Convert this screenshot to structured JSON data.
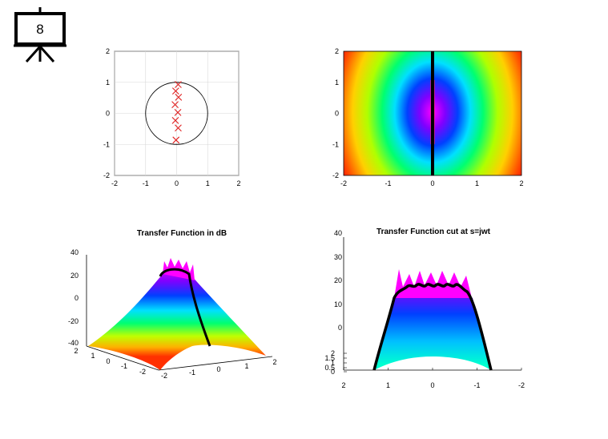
{
  "slide": {
    "number": "8",
    "icon": "presentation-board-icon"
  },
  "chart_data": [
    {
      "type": "scatter",
      "title": "",
      "description_unit": "pole-zero plot",
      "xlim": [
        -2,
        2
      ],
      "ylim": [
        -2,
        2
      ],
      "xticks": [
        "-2",
        "-1",
        "0",
        "1",
        "2"
      ],
      "yticks": [
        "-2",
        "-1",
        "0",
        "1",
        "2"
      ],
      "grid": true,
      "unit_circle": true,
      "poles": {
        "marker": "x",
        "color": "#e02020",
        "x": [
          0.05,
          -0.03,
          0.06,
          -0.05,
          0.04,
          -0.04,
          0.05,
          -0.02
        ],
        "y": [
          0.93,
          0.72,
          0.52,
          0.28,
          0.03,
          -0.23,
          -0.47,
          -0.86
        ]
      }
    },
    {
      "type": "heatmap",
      "title": "",
      "xlim": [
        -2,
        2
      ],
      "ylim": [
        -2,
        2
      ],
      "xticks": [
        "-2",
        "-1",
        "0",
        "1",
        "2"
      ],
      "yticks": [
        "-2",
        "-1",
        "0",
        "1",
        "2"
      ],
      "colormap": "hsv",
      "cut_line_x": 0
    },
    {
      "type": "surface",
      "title": "Transfer Function in dB",
      "zticks": [
        "-40",
        "-20",
        "0",
        "20",
        "40"
      ],
      "xticks": [
        "-2",
        "-1",
        "0",
        "1",
        "2"
      ],
      "yticks": [
        "-2",
        "-1",
        "0",
        "1",
        "2"
      ],
      "colormap": "hsv"
    },
    {
      "type": "surface",
      "title": "Transfer Function cut at s=jwt",
      "zticks": [
        "0",
        "10",
        "20",
        "30",
        "40"
      ],
      "ysmall_ticks": [
        "0",
        "0.5",
        "1",
        "1.5",
        "2"
      ],
      "xticks": [
        "2",
        "1",
        "0",
        "-1",
        "-2"
      ],
      "colormap": "hsv"
    }
  ]
}
